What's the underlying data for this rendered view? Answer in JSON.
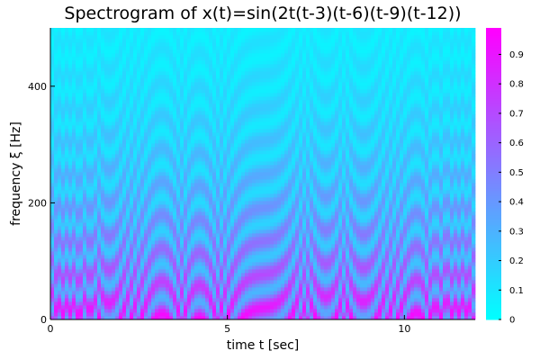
{
  "chart_data": {
    "type": "heatmap",
    "title": "Spectrogram of x(t)=sin(2t(t-3)(t-6)(t-9)(t-12))",
    "xlabel": "time t [sec]",
    "ylabel": "frequency ξ [Hz]",
    "xlim": [
      0,
      12
    ],
    "ylim": [
      0,
      500
    ],
    "xticks": [
      0,
      5,
      10
    ],
    "yticks": [
      0,
      200,
      400
    ],
    "xtick_labels": [
      "0",
      "5",
      "10"
    ],
    "ytick_labels": [
      "0",
      "200",
      "400"
    ],
    "grid": false,
    "signal": "sin(2t(t-3)(t-6)(t-9)(t-12))",
    "colormap": {
      "name": "cool",
      "low": "#00ffff",
      "high": "#ff00ff"
    },
    "colorbar": {
      "range": [
        0,
        0.99
      ],
      "ticks": [
        0,
        0.1,
        0.2,
        0.3,
        0.4,
        0.5,
        0.6,
        0.7,
        0.8,
        0.9
      ],
      "tick_labels": [
        "0",
        "0.1",
        "0.2",
        "0.3",
        "0.4",
        "0.5",
        "0.6",
        "0.7",
        "0.8",
        "0.9"
      ]
    }
  }
}
